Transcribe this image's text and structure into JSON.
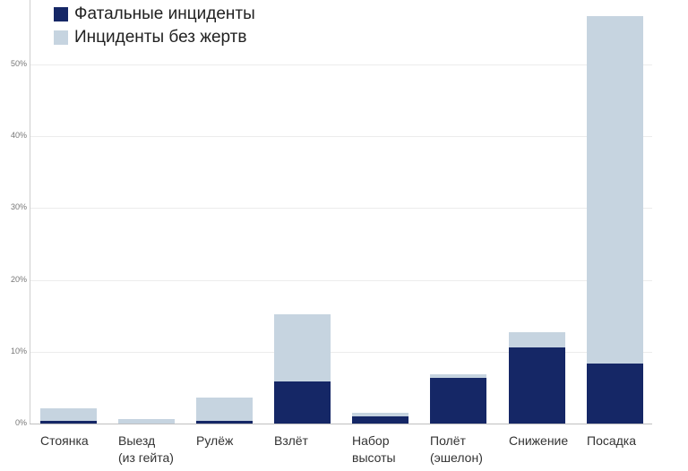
{
  "chart_data": {
    "type": "bar",
    "stacked": true,
    "title": "",
    "xlabel": "",
    "ylabel": "",
    "ylim": [
      0,
      57
    ],
    "grid": true,
    "legend_position": "top-left",
    "yticks": [
      "0%",
      "10%",
      "20%",
      "30%",
      "40%",
      "50%"
    ],
    "categories": [
      "Стоянка",
      "Выезд (из гейта)",
      "Рулёж",
      "Взлёт",
      "Набор высоты",
      "Полёт (эшелон)",
      "Снижение",
      "Посадка"
    ],
    "category_lines": [
      [
        "Стоянка"
      ],
      [
        "Выезд",
        "(из гейта)"
      ],
      [
        "Рулёж"
      ],
      [
        "Взлёт"
      ],
      [
        "Набор",
        "высоты"
      ],
      [
        "Полёт",
        "(эшелон)"
      ],
      [
        "Снижение"
      ],
      [
        "Посадка"
      ]
    ],
    "series": [
      {
        "name": "Фатальные инциденты",
        "color": "#152766",
        "values": [
          0.4,
          0.0,
          0.4,
          5.9,
          1.0,
          6.3,
          10.6,
          8.4
        ]
      },
      {
        "name": "Инциденты без жертв",
        "color": "#c6d4e0",
        "values": [
          1.7,
          0.6,
          3.2,
          9.3,
          0.5,
          0.5,
          2.1,
          48.3
        ]
      }
    ],
    "totals": [
      2.1,
      0.6,
      3.6,
      15.2,
      1.5,
      6.8,
      12.7,
      56.7
    ]
  }
}
